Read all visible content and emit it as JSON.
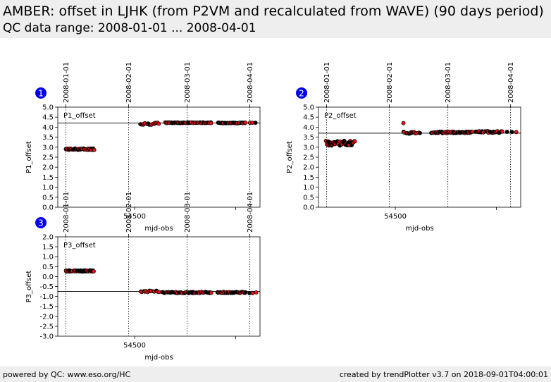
{
  "header": {
    "title": "AMBER: offset in LJHK (from P2VM and recalculated from WAVE) (90 days period)",
    "subtitle": "QC data range: 2008-01-01 ... 2008-04-01"
  },
  "footer": {
    "left": "powered by QC: www.eso.org/HC",
    "right": "created by trendPlotter v3.7 on 2018-09-01T04:00:01"
  },
  "colors": {
    "marker": "#ee1111",
    "marker_edge": "#000000",
    "badge": "#0000ee",
    "header_bg": "#eeeeee"
  },
  "chart_data": [
    {
      "type": "scatter",
      "badge": "1",
      "series_label": "P1_offset",
      "xlabel": "mjd-obs",
      "ylabel": "P1_offset",
      "xlim": [
        54462,
        54562
      ],
      "ylim": [
        0.0,
        5.0
      ],
      "xtick_labels": [
        {
          "value": 54500,
          "label": "54500"
        }
      ],
      "minor_xticks": [
        54550
      ],
      "yticks": [
        "0.0",
        "0.5",
        "1.0",
        "1.5",
        "2.0",
        "2.5",
        "3.0",
        "3.5",
        "4.0",
        "4.5",
        "5.0"
      ],
      "date_lines": [
        {
          "mjd": 54466,
          "label": "2008-01-01"
        },
        {
          "mjd": 54497,
          "label": "2008-02-01"
        },
        {
          "mjd": 54526,
          "label": "2008-03-01"
        },
        {
          "mjd": 54557,
          "label": "2008-04-01"
        }
      ],
      "reference_line": 4.2,
      "clusters": [
        {
          "x": [
            54466,
            54480
          ],
          "y": 2.9,
          "spread": 0.04,
          "n": 42
        },
        {
          "x": [
            54503,
            54512
          ],
          "y": 4.17,
          "spread": 0.05,
          "n": 16
        },
        {
          "x": [
            54515,
            54538
          ],
          "y": 4.22,
          "spread": 0.02,
          "n": 55
        },
        {
          "x": [
            54541,
            54555
          ],
          "y": 4.21,
          "spread": 0.02,
          "n": 32
        },
        {
          "x": [
            54557,
            54560
          ],
          "y": 4.22,
          "spread": 0.01,
          "n": 3
        }
      ]
    },
    {
      "type": "scatter",
      "badge": "2",
      "series_label": "P2_offset",
      "xlabel": "mjd-obs",
      "ylabel": "P2_offset",
      "xlim": [
        54462,
        54562
      ],
      "ylim": [
        0.0,
        5.0
      ],
      "xtick_labels": [
        {
          "value": 54500,
          "label": "54500"
        }
      ],
      "minor_xticks": [
        54550
      ],
      "yticks": [
        "0.0",
        "0.5",
        "1.0",
        "1.5",
        "2.0",
        "2.5",
        "3.0",
        "3.5",
        "4.0",
        "4.5",
        "5.0"
      ],
      "date_lines": [
        {
          "mjd": 54466,
          "label": "2008-01-01"
        },
        {
          "mjd": 54497,
          "label": "2008-02-01"
        },
        {
          "mjd": 54526,
          "label": "2008-03-01"
        },
        {
          "mjd": 54557,
          "label": "2008-04-01"
        }
      ],
      "reference_line": 3.7,
      "clusters": [
        {
          "x": [
            54466,
            54480
          ],
          "y": 3.2,
          "spread": 0.12,
          "n": 45
        },
        {
          "x": [
            54504,
            54512
          ],
          "y": 3.72,
          "spread": 0.05,
          "n": 14
        },
        {
          "x": [
            54518,
            54538
          ],
          "y": 3.74,
          "spread": 0.04,
          "n": 55
        },
        {
          "x": [
            54540,
            54553
          ],
          "y": 3.76,
          "spread": 0.04,
          "n": 32
        },
        {
          "x": [
            54555,
            54560
          ],
          "y": 3.75,
          "spread": 0.02,
          "n": 3
        }
      ],
      "outliers": [
        {
          "x": 54504,
          "y": 4.2
        }
      ]
    },
    {
      "type": "scatter",
      "badge": "3",
      "series_label": "P3_offset",
      "xlabel": "mjd-obs",
      "ylabel": "P3_offset",
      "xlim": [
        54462,
        54562
      ],
      "ylim": [
        -3.0,
        2.0
      ],
      "xtick_labels": [
        {
          "value": 54500,
          "label": "54500"
        }
      ],
      "minor_xticks": [
        54550
      ],
      "yticks": [
        "-3.0",
        "-2.5",
        "-2.0",
        "-1.5",
        "-1.0",
        "-0.5",
        "0.0",
        "0.5",
        "1.0",
        "1.5",
        "2.0"
      ],
      "date_lines": [
        {
          "mjd": 54466,
          "label": "2008-01-01"
        },
        {
          "mjd": 54497,
          "label": "2008-02-01"
        },
        {
          "mjd": 54526,
          "label": "2008-03-01"
        },
        {
          "mjd": 54557,
          "label": "2008-04-01"
        }
      ],
      "reference_line": -0.75,
      "clusters": [
        {
          "x": [
            54466,
            54480
          ],
          "y": 0.28,
          "spread": 0.03,
          "n": 42
        },
        {
          "x": [
            54503,
            54512
          ],
          "y": -0.75,
          "spread": 0.04,
          "n": 14
        },
        {
          "x": [
            54514,
            54538
          ],
          "y": -0.8,
          "spread": 0.03,
          "n": 55
        },
        {
          "x": [
            54541,
            54555
          ],
          "y": -0.8,
          "spread": 0.03,
          "n": 32
        },
        {
          "x": [
            54557,
            54560
          ],
          "y": -0.82,
          "spread": 0.02,
          "n": 3
        }
      ]
    }
  ]
}
